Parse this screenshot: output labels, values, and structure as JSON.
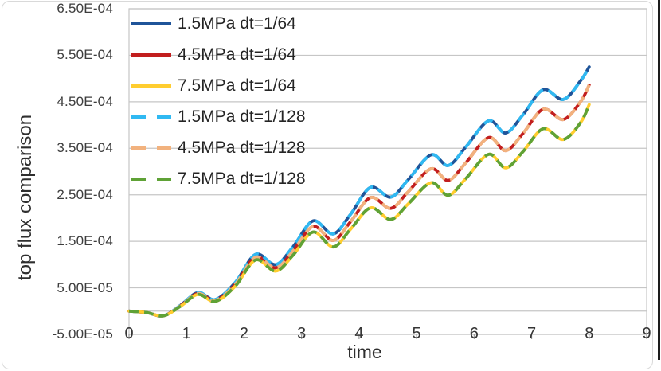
{
  "figure": {
    "background": "#FFFFFF",
    "frame_color": "#D9D9D9",
    "right_edge_color": "#1C1C1C"
  },
  "chart_data": {
    "type": "line",
    "title": "",
    "xlabel": "time",
    "ylabel": "top flux comparison",
    "xlim": [
      0,
      9
    ],
    "ylim": [
      -5e-05,
      0.00065
    ],
    "grid": "horizontal",
    "gridline_color": "#C6C6C6",
    "zero_axis_value": 0,
    "legend_position": "top-left-inside",
    "x_ticks": [
      "0",
      "1",
      "2",
      "3",
      "4",
      "5",
      "6",
      "7",
      "8",
      "9"
    ],
    "y_ticks": [
      {
        "label": "6.50E-04",
        "value": 0.00065
      },
      {
        "label": "5.50E-04",
        "value": 0.00055
      },
      {
        "label": "4.50E-04",
        "value": 0.00045
      },
      {
        "label": "3.50E-04",
        "value": 0.00035
      },
      {
        "label": "2.50E-04",
        "value": 0.00025
      },
      {
        "label": "1.50E-04",
        "value": 0.00015
      },
      {
        "label": "5.00E-05",
        "value": 5e-05
      },
      {
        "label": "-5.00E-05",
        "value": -5e-05
      }
    ],
    "series": [
      {
        "name": "1.5MPa dt=1/64",
        "color": "#1F5499",
        "style": "solid",
        "points_ref": "p_1_5MPa"
      },
      {
        "name": "4.5MPa dt=1/64",
        "color": "#C21E1E",
        "style": "solid",
        "points_ref": "p_4_5MPa"
      },
      {
        "name": "7.5MPa dt=1/64",
        "color": "#FFCD2F",
        "style": "solid",
        "points_ref": "p_7_5MPa"
      },
      {
        "name": "1.5MPa dt=1/128",
        "color": "#30B9F2",
        "style": "dashed",
        "points_ref": "p_1_5MPa"
      },
      {
        "name": "4.5MPa dt=1/128",
        "color": "#F2B27E",
        "style": "dashed",
        "points_ref": "p_4_5MPa"
      },
      {
        "name": "7.5MPa dt=1/128",
        "color": "#5FA236",
        "style": "dashed",
        "points_ref": "p_7_5MPa"
      }
    ],
    "points_scale": 0.0001,
    "points": {
      "p_1_5MPa": [
        [
          0,
          0
        ],
        [
          0.3,
          -0.03
        ],
        [
          0.6,
          -0.1
        ],
        [
          0.9,
          0.13
        ],
        [
          1.2,
          0.4
        ],
        [
          1.5,
          0.25
        ],
        [
          1.85,
          0.62
        ],
        [
          2.2,
          1.22
        ],
        [
          2.55,
          1.0
        ],
        [
          2.85,
          1.38
        ],
        [
          3.2,
          1.94
        ],
        [
          3.55,
          1.66
        ],
        [
          3.85,
          2.08
        ],
        [
          4.2,
          2.66
        ],
        [
          4.55,
          2.45
        ],
        [
          4.85,
          2.82
        ],
        [
          5.25,
          3.36
        ],
        [
          5.55,
          3.13
        ],
        [
          5.85,
          3.52
        ],
        [
          6.25,
          4.09
        ],
        [
          6.55,
          3.83
        ],
        [
          6.85,
          4.22
        ],
        [
          7.2,
          4.76
        ],
        [
          7.55,
          4.55
        ],
        [
          7.85,
          4.95
        ],
        [
          8,
          5.25
        ]
      ],
      "p_4_5MPa": [
        [
          0,
          0
        ],
        [
          0.3,
          -0.03
        ],
        [
          0.6,
          -0.1
        ],
        [
          0.9,
          0.12
        ],
        [
          1.2,
          0.38
        ],
        [
          1.5,
          0.23
        ],
        [
          1.85,
          0.58
        ],
        [
          2.2,
          1.16
        ],
        [
          2.55,
          0.93
        ],
        [
          2.85,
          1.29
        ],
        [
          3.2,
          1.82
        ],
        [
          3.55,
          1.52
        ],
        [
          3.85,
          1.92
        ],
        [
          4.2,
          2.44
        ],
        [
          4.55,
          2.21
        ],
        [
          4.85,
          2.56
        ],
        [
          5.25,
          3.06
        ],
        [
          5.55,
          2.81
        ],
        [
          5.85,
          3.18
        ],
        [
          6.25,
          3.73
        ],
        [
          6.55,
          3.45
        ],
        [
          6.85,
          3.82
        ],
        [
          7.2,
          4.34
        ],
        [
          7.55,
          4.12
        ],
        [
          7.85,
          4.5
        ],
        [
          8,
          4.86
        ]
      ],
      "p_7_5MPa": [
        [
          0,
          0
        ],
        [
          0.3,
          -0.03
        ],
        [
          0.6,
          -0.1
        ],
        [
          0.9,
          0.11
        ],
        [
          1.2,
          0.36
        ],
        [
          1.5,
          0.21
        ],
        [
          1.85,
          0.54
        ],
        [
          2.2,
          1.1
        ],
        [
          2.55,
          0.86
        ],
        [
          2.85,
          1.2
        ],
        [
          3.2,
          1.7
        ],
        [
          3.55,
          1.38
        ],
        [
          3.85,
          1.76
        ],
        [
          4.2,
          2.22
        ],
        [
          4.55,
          1.97
        ],
        [
          4.85,
          2.3
        ],
        [
          5.25,
          2.76
        ],
        [
          5.55,
          2.49
        ],
        [
          5.85,
          2.84
        ],
        [
          6.25,
          3.37
        ],
        [
          6.55,
          3.08
        ],
        [
          6.85,
          3.43
        ],
        [
          7.2,
          3.92
        ],
        [
          7.55,
          3.69
        ],
        [
          7.85,
          4.05
        ],
        [
          8,
          4.44
        ]
      ]
    }
  }
}
